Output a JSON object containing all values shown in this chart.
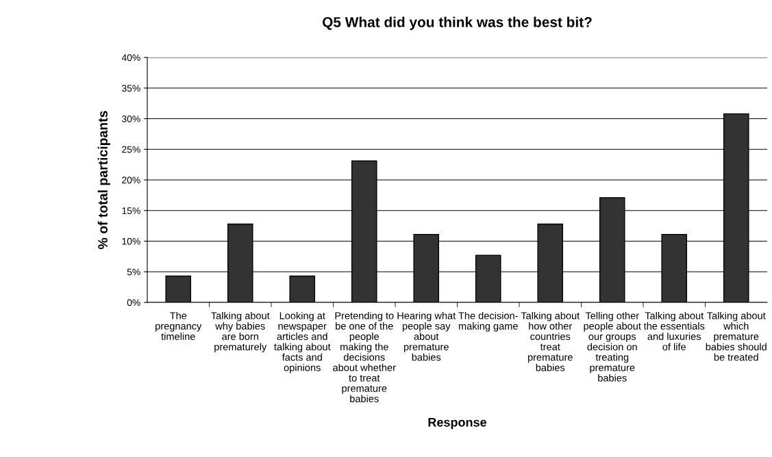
{
  "chart_data": {
    "type": "bar",
    "title": "Q5 What did you think was the best bit?",
    "xlabel": "Response",
    "ylabel": "% of total participants",
    "categories": [
      "The\npregnancy\ntimeline",
      "Talking about\nwhy babies\nare born\nprematurely",
      "Looking at\nnewspaper\narticles and\ntalking about\nfacts and\nopinions",
      "Pretending to\nbe one of the\npeople\nmaking the\ndecisions\nabout whether\nto treat\npremature\nbabies",
      "Hearing what\npeople say\nabout\npremature\nbabies",
      "The decision-\nmaking game",
      "Talking about\nhow other\ncountries\ntreat\npremature\nbabies",
      "Telling other\npeople about\nour groups\ndecision on\ntreating\npremature\nbabies",
      "Talking about\nthe essentials\nand luxuries\nof life",
      "Talking about\nwhich\npremature\nbabies should\nbe treated"
    ],
    "values": [
      4.3,
      12.8,
      4.3,
      23.1,
      11.1,
      7.7,
      12.8,
      17.1,
      11.1,
      30.8
    ],
    "color": "#333333",
    "ylim": [
      0,
      40
    ],
    "yticks": [
      {
        "value": 0,
        "label": "0%"
      },
      {
        "value": 5,
        "label": "5%"
      },
      {
        "value": 10,
        "label": "10%"
      },
      {
        "value": 15,
        "label": "15%"
      },
      {
        "value": 20,
        "label": "20%"
      },
      {
        "value": 25,
        "label": "25%"
      },
      {
        "value": 30,
        "label": "30%"
      },
      {
        "value": 35,
        "label": "35%"
      },
      {
        "value": 40,
        "label": "40%"
      }
    ],
    "grid": "y",
    "legend": false
  }
}
